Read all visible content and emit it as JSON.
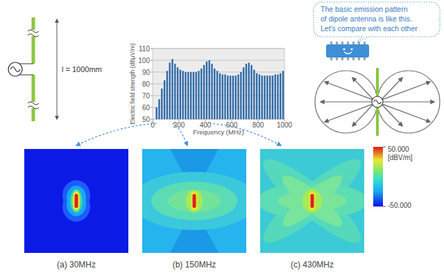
{
  "antenna": {
    "length_label": "l = 1000mm"
  },
  "chart_data": {
    "type": "bar",
    "xlabel": "Frequency (MHz)",
    "ylabel": "Electric field strength (dBμV/m)",
    "x": [
      30,
      50,
      70,
      90,
      110,
      130,
      150,
      170,
      190,
      210,
      230,
      250,
      270,
      290,
      310,
      330,
      350,
      370,
      390,
      410,
      430,
      450,
      470,
      490,
      510,
      530,
      550,
      570,
      590,
      610,
      630,
      650,
      670,
      690,
      710,
      730,
      750,
      770,
      790,
      810,
      830,
      850,
      870,
      890,
      910,
      930,
      950,
      970,
      990
    ],
    "values": [
      60,
      67,
      76,
      83,
      91,
      98,
      101,
      97,
      94,
      92,
      91,
      90,
      90,
      90,
      90,
      90,
      91,
      93,
      96,
      99,
      100,
      97,
      93,
      91,
      89,
      88,
      88,
      87,
      87,
      87,
      87,
      88,
      90,
      94,
      97,
      98,
      96,
      92,
      89,
      88,
      87,
      87,
      87,
      87,
      87,
      88,
      88,
      89,
      91
    ],
    "color": "#2f6aa8",
    "xlim": [
      0,
      1000
    ],
    "ylim": [
      50,
      110
    ],
    "xticks": [
      0,
      200,
      400,
      600,
      800,
      1000
    ],
    "yticks": [
      50,
      60,
      70,
      80,
      90,
      100,
      110
    ],
    "grid": true
  },
  "speech_bubble": {
    "lines": [
      "The basic emission pattern",
      "of dipole antenna is like this.",
      "Let's compare with each other"
    ]
  },
  "panels": [
    {
      "caption": "(a) 30MHz",
      "frequency": 30
    },
    {
      "caption": "(b) 150MHz",
      "frequency": 150
    },
    {
      "caption": "(c) 430MHz",
      "frequency": 430
    }
  ],
  "colorbar": {
    "range": [
      -50,
      50
    ],
    "ticks": [
      {
        "value": 50,
        "label": "50.000"
      },
      {
        "value": -50,
        "label": "-50.000"
      }
    ],
    "unit": "[dBV/m]"
  }
}
